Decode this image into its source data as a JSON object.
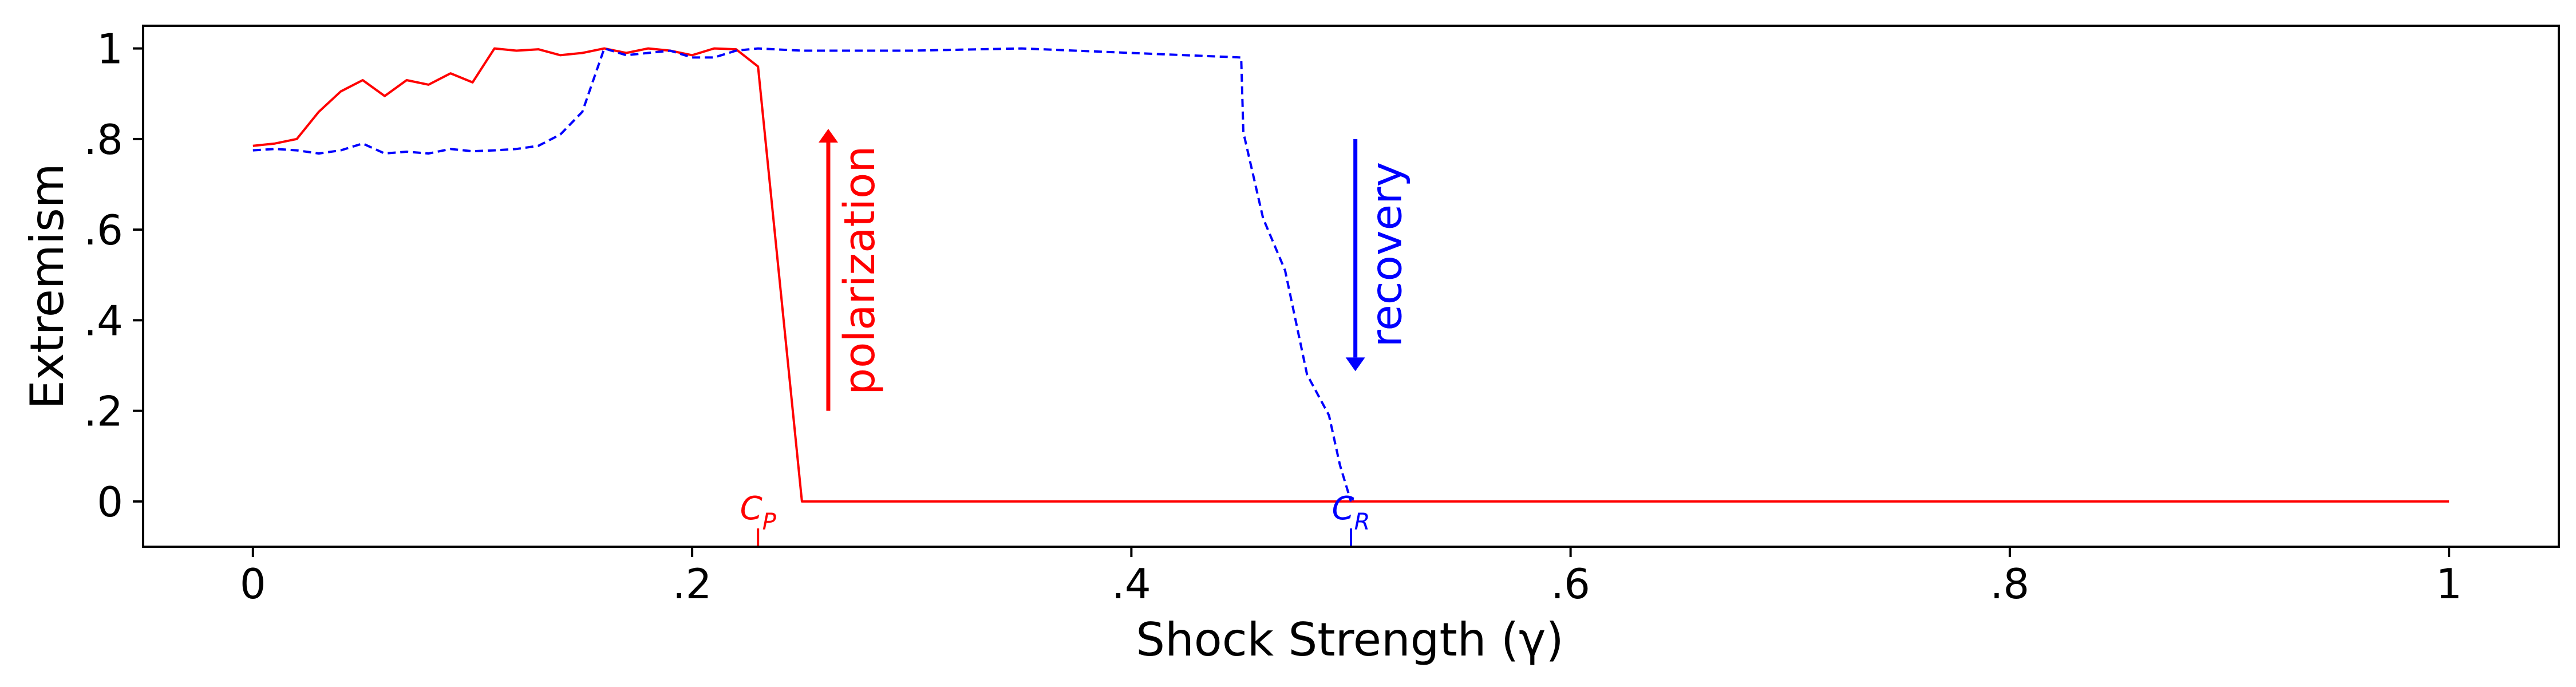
{
  "chart_data": {
    "type": "line",
    "xlabel": "Shock Strength (γ)",
    "ylabel": "Extremism",
    "xlim": [
      -0.05,
      1.05
    ],
    "ylim": [
      -0.1,
      1.05
    ],
    "x_ticks": [
      {
        "value": 0,
        "label": "0"
      },
      {
        "value": 0.2,
        "label": ".2"
      },
      {
        "value": 0.4,
        "label": ".4"
      },
      {
        "value": 0.6,
        "label": ".6"
      },
      {
        "value": 0.8,
        "label": ".8"
      },
      {
        "value": 1.0,
        "label": "1"
      }
    ],
    "y_ticks": [
      {
        "value": 0,
        "label": "0"
      },
      {
        "value": 0.2,
        "label": ".2"
      },
      {
        "value": 0.4,
        "label": ".4"
      },
      {
        "value": 0.6,
        "label": ".6"
      },
      {
        "value": 0.8,
        "label": ".8"
      },
      {
        "value": 1.0,
        "label": "1"
      }
    ],
    "grid": false,
    "series": [
      {
        "color": "#ff0000",
        "style": "solid",
        "x": [
          0,
          0.01,
          0.02,
          0.03,
          0.04,
          0.05,
          0.06,
          0.07,
          0.08,
          0.09,
          0.1,
          0.11,
          0.12,
          0.13,
          0.14,
          0.15,
          0.16,
          0.17,
          0.18,
          0.19,
          0.2,
          0.21,
          0.22,
          0.23,
          0.25,
          1.0
        ],
        "y": [
          0.785,
          0.79,
          0.8,
          0.86,
          0.905,
          0.93,
          0.895,
          0.93,
          0.92,
          0.945,
          0.925,
          1.0,
          0.995,
          0.998,
          0.985,
          0.99,
          1.0,
          0.99,
          1.0,
          0.995,
          0.985,
          1.0,
          0.998,
          0.96,
          0.0,
          0.0
        ]
      },
      {
        "color": "#0000ff",
        "style": "dashed",
        "x": [
          0,
          0.01,
          0.02,
          0.03,
          0.04,
          0.05,
          0.06,
          0.07,
          0.08,
          0.09,
          0.1,
          0.11,
          0.12,
          0.13,
          0.14,
          0.15,
          0.16,
          0.17,
          0.18,
          0.19,
          0.2,
          0.21,
          0.22,
          0.23,
          0.25,
          0.3,
          0.35,
          0.4,
          0.45,
          0.451,
          0.46,
          0.47,
          0.48,
          0.49,
          0.495,
          0.5
        ],
        "y": [
          0.775,
          0.778,
          0.775,
          0.768,
          0.775,
          0.79,
          0.768,
          0.772,
          0.768,
          0.778,
          0.773,
          0.775,
          0.778,
          0.785,
          0.81,
          0.86,
          1.0,
          0.985,
          0.99,
          0.995,
          0.98,
          0.98,
          0.995,
          1.0,
          0.995,
          0.995,
          1.0,
          0.99,
          0.98,
          0.815,
          0.625,
          0.51,
          0.28,
          0.19,
          0.08,
          0.0
        ]
      }
    ],
    "annotations": [
      {
        "name": "polarization",
        "text": "polarization",
        "color": "#ff0000",
        "x": 0.262,
        "y_start": 0.2,
        "y_end": 0.82
      },
      {
        "name": "recovery",
        "text": "recovery",
        "color": "#0000ff",
        "x": 0.502,
        "y_start": 0.8,
        "y_end": 0.29
      }
    ],
    "markers": [
      {
        "name": "cp",
        "letter": "C",
        "sub": "P",
        "color": "#ff0000",
        "x": 0.23
      },
      {
        "name": "cr",
        "letter": "C",
        "sub": "R",
        "color": "#0000ff",
        "x": 0.5
      }
    ]
  }
}
